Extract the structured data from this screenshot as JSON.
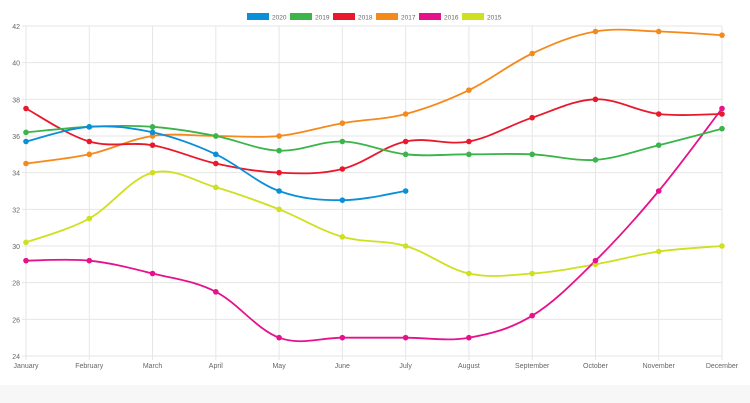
{
  "chart_data": {
    "type": "line",
    "categories": [
      "January",
      "February",
      "March",
      "April",
      "May",
      "June",
      "July",
      "August",
      "September",
      "October",
      "November",
      "December"
    ],
    "yticks": [
      "24",
      "26",
      "28",
      "30",
      "32",
      "34",
      "36",
      "38",
      "40",
      "42"
    ],
    "ylim": [
      24,
      42
    ],
    "grid": true,
    "legend_position": "top-center",
    "smooth": true,
    "series": [
      {
        "name": "2020",
        "color": "#0a8fd8",
        "values": [
          35.7,
          36.5,
          36.2,
          35.0,
          33.0,
          32.5,
          33.0,
          null,
          null,
          null,
          null,
          null
        ]
      },
      {
        "name": "2019",
        "color": "#3bb54a",
        "values": [
          36.2,
          36.5,
          36.5,
          36.0,
          35.2,
          35.7,
          35.0,
          35.0,
          35.0,
          34.7,
          35.5,
          36.4
        ]
      },
      {
        "name": "2018",
        "color": "#e8192c",
        "values": [
          37.5,
          35.7,
          35.5,
          34.5,
          34.0,
          34.2,
          35.7,
          35.7,
          37.0,
          38.0,
          37.2,
          37.2
        ]
      },
      {
        "name": "2017",
        "color": "#f48a1c",
        "values": [
          34.5,
          35.0,
          36.0,
          36.0,
          36.0,
          36.7,
          37.2,
          38.5,
          40.5,
          41.7,
          41.7,
          41.5
        ]
      },
      {
        "name": "2016",
        "color": "#e5128c",
        "values": [
          29.2,
          29.2,
          28.5,
          27.5,
          25.0,
          25.0,
          25.0,
          25.0,
          26.2,
          29.2,
          33.0,
          37.5
        ]
      },
      {
        "name": "2015",
        "color": "#cfe020",
        "values": [
          30.2,
          31.5,
          34.0,
          33.2,
          32.0,
          30.5,
          30.0,
          28.5,
          28.5,
          29.0,
          29.7,
          30.0
        ]
      }
    ]
  }
}
